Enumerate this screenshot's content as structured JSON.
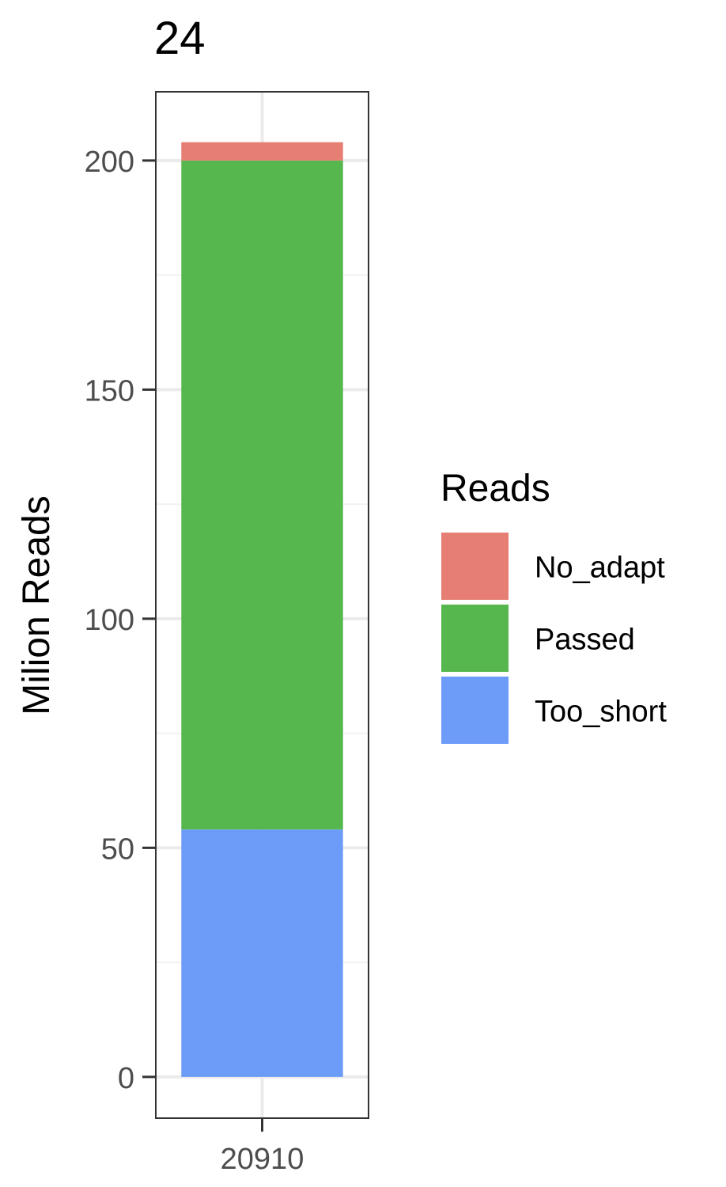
{
  "chart_data": {
    "type": "bar",
    "stacked": true,
    "title": "24",
    "xlabel": "",
    "ylabel": "Milion Reads",
    "categories": [
      "20910"
    ],
    "ylim": [
      -9,
      215
    ],
    "yticks": [
      0,
      50,
      100,
      150,
      200
    ],
    "grid": true,
    "series": [
      {
        "name": "Too_short",
        "values": [
          54
        ],
        "color": "#6d9cf8"
      },
      {
        "name": "Passed",
        "values": [
          146
        ],
        "color": "#55b74e"
      },
      {
        "name": "No_adapt",
        "values": [
          4
        ],
        "color": "#e67e73"
      }
    ],
    "legend": {
      "title": "Reads",
      "position": "right",
      "items": [
        {
          "label": "No_adapt",
          "color": "#e67e73"
        },
        {
          "label": "Passed",
          "color": "#55b74e"
        },
        {
          "label": "Too_short",
          "color": "#6d9cf8"
        }
      ]
    }
  }
}
